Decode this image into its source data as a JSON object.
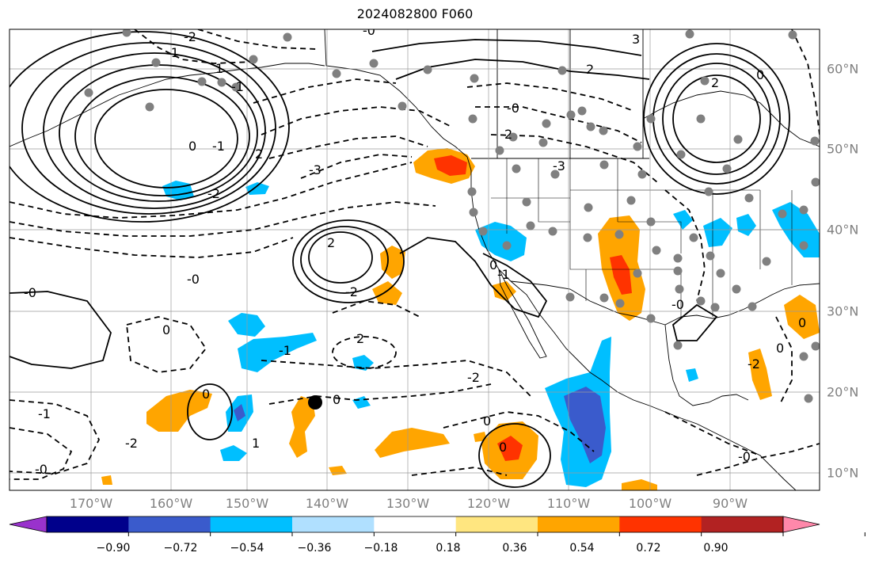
{
  "title": "2024082800 F060",
  "map": {
    "lon_labels": [
      "170°W",
      "160°W",
      "150°W",
      "140°W",
      "130°W",
      "120°W",
      "110°W",
      "100°W",
      "90°W"
    ],
    "lon_values": [
      -170,
      -160,
      -150,
      -140,
      -130,
      -120,
      -110,
      -100,
      -90
    ],
    "lat_labels": [
      "60°N",
      "50°N",
      "40°N",
      "30°N",
      "20°N",
      "10°N"
    ],
    "lat_values": [
      60,
      50,
      40,
      30,
      20,
      10
    ],
    "lon_range": [
      -171.2,
      -81.0
    ],
    "lat_range": [
      8.0,
      63.3
    ],
    "contour_labels": [
      "-2",
      "-1",
      "1",
      "-2",
      "2",
      "-2",
      "-0",
      "3",
      "-0",
      "2",
      "-0",
      "2",
      "0",
      "-3",
      "-3",
      "2",
      "2",
      "0",
      "2",
      "-1",
      "-0",
      "-2",
      "0",
      "0",
      "1",
      "-1",
      "-2",
      "-0",
      "-2",
      "0",
      "0",
      "0",
      "-0",
      "-0",
      "-1",
      "-1",
      "0",
      "-1",
      "0",
      "0"
    ],
    "station_markers": "gray-dots",
    "highlight_marker": "black-dot"
  },
  "colorbar": {
    "tick_labels": [
      "−0.90",
      "−0.72",
      "−0.54",
      "−0.36",
      "−0.18",
      "0.18",
      "0.36",
      "0.54",
      "0.72",
      "0.90"
    ],
    "tick_values": [
      -0.9,
      -0.72,
      -0.54,
      -0.36,
      -0.18,
      0.18,
      0.36,
      0.54,
      0.72,
      0.9
    ],
    "colors": [
      "#9932CC",
      "#00008B",
      "#3A5BCC",
      "#00BFFF",
      "#B0E0FF",
      "#FFFFFF",
      "#FFE680",
      "#FFA500",
      "#FF3300",
      "#B22222",
      "#FF88AA"
    ],
    "extend": "both"
  }
}
